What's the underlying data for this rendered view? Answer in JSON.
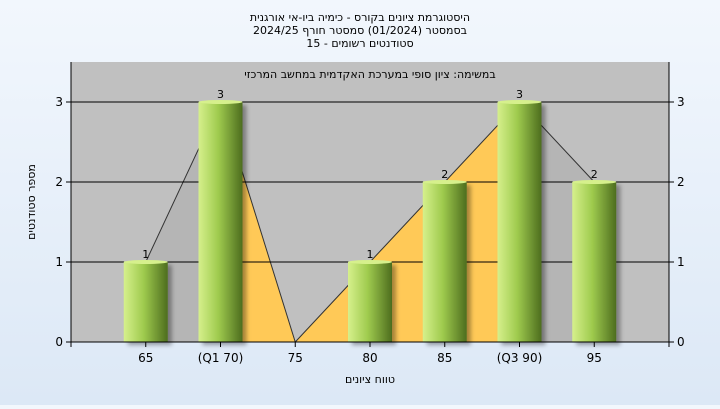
{
  "chart_data": {
    "type": "bar",
    "title_lines": [
      "היסטוגרמת ציונים בקורס - כימיה ביו-אי אורגנית",
      "בסמסטר  (01/2024)  סמסטר חורף 2024/25",
      "סטודנטים רשומים - 15"
    ],
    "annotation": "במשימה: ציון סופי במערכת האקדמית במחשב המרכזי",
    "xlabel": "טווח ציונים",
    "ylabel": "מספר סטודנטים",
    "categories": [
      "65",
      "(Q1 70)",
      "75",
      "80",
      "85",
      "(Q3 90)",
      "95"
    ],
    "values": [
      1,
      3,
      0,
      1,
      2,
      3,
      2
    ],
    "value_labels": [
      "1",
      "3",
      "",
      "1",
      "2",
      "3",
      "2"
    ],
    "ylim": [
      0,
      3.5
    ],
    "yticks": [
      0,
      1,
      2,
      3
    ],
    "interquartile_band": [
      "(Q1 70)",
      "(Q3 90)"
    ],
    "grid": true,
    "colors": {
      "plot_background": "#c0c0c0",
      "band_fill": "#ffc957",
      "bar_light": "#d6f08c",
      "bar_mid": "#9fcb4e",
      "bar_dark": "#4d6d1e",
      "gridline": "#000000"
    }
  }
}
